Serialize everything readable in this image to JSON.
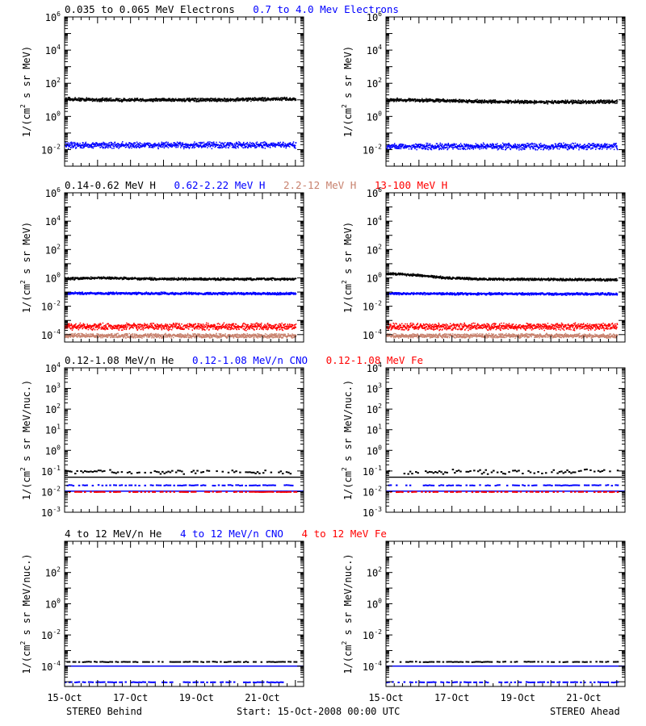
{
  "footer": {
    "left": "STEREO Behind",
    "center": "Start: 15-Oct-2008 00:00 UTC",
    "right": "STEREO Ahead"
  },
  "colors": {
    "black": "#000000",
    "blue": "#0000ff",
    "red": "#ff0000",
    "tan": "#c8826e"
  },
  "chart_data": [
    {
      "type": "scatter",
      "panel": "electrons-behind",
      "yscale": "log",
      "ylim": [
        0.001,
        1000000
      ],
      "yticks": [
        {
          "v": 0.01,
          "b": "10",
          "e": "-2"
        },
        {
          "v": 1,
          "b": "10",
          "e": "0"
        },
        {
          "v": 100,
          "b": "10",
          "e": "2"
        },
        {
          "v": 10000,
          "b": "10",
          "e": "4"
        },
        {
          "v": 1000000,
          "b": "10",
          "e": "6"
        }
      ],
      "ylabel": {
        "pre": "1/(cm",
        "sup": "2",
        "post": " s sr MeV)"
      },
      "legend": [
        {
          "text": "0.035 to 0.065 MeV Electrons",
          "color": "#000000"
        },
        {
          "text": "0.7 to 4.0 Mev Electrons",
          "color": "#0000ff"
        }
      ],
      "xlim": [
        0,
        7.25
      ],
      "series": [
        {
          "name": "0.035 to 0.065 MeV Electrons",
          "color": "#000000",
          "mode": "dense",
          "points": [
            [
              0,
              12
            ],
            [
              1,
              11
            ],
            [
              2,
              10.5
            ],
            [
              3,
              11
            ],
            [
              4,
              10.5
            ],
            [
              5,
              11
            ],
            [
              6,
              12
            ],
            [
              7,
              12
            ]
          ],
          "scatter_decades": 0.12
        },
        {
          "name": "0.7 to 4.0 Mev Electrons",
          "color": "#0000ff",
          "mode": "dense",
          "points": [
            [
              0,
              0.02
            ],
            [
              7,
              0.02
            ]
          ],
          "scatter_decades": 0.22
        }
      ]
    },
    {
      "type": "scatter",
      "panel": "electrons-ahead",
      "yscale": "log",
      "ylim": [
        0.001,
        1000000
      ],
      "yticks": [
        {
          "v": 0.01,
          "b": "10",
          "e": "-2"
        },
        {
          "v": 1,
          "b": "10",
          "e": "0"
        },
        {
          "v": 100,
          "b": "10",
          "e": "2"
        },
        {
          "v": 10000,
          "b": "10",
          "e": "4"
        },
        {
          "v": 1000000,
          "b": "10",
          "e": "6"
        }
      ],
      "ylabel": {
        "pre": "1/(cm",
        "sup": "2",
        "post": " s sr MeV)"
      },
      "legend": [],
      "xlim": [
        0,
        7.25
      ],
      "series": [
        {
          "name": "0.035 to 0.065 MeV Electrons",
          "color": "#000000",
          "mode": "dense",
          "points": [
            [
              0,
              11
            ],
            [
              1.5,
              10
            ],
            [
              3,
              8.5
            ],
            [
              4.5,
              8
            ],
            [
              6,
              8
            ],
            [
              7,
              8.5
            ]
          ],
          "scatter_decades": 0.12
        },
        {
          "name": "0.7 to 4.0 Mev Electrons",
          "color": "#0000ff",
          "mode": "dense",
          "points": [
            [
              0,
              0.017
            ],
            [
              7,
              0.017
            ]
          ],
          "scatter_decades": 0.22
        }
      ]
    },
    {
      "type": "scatter",
      "panel": "protons-behind",
      "yscale": "log",
      "ylim": [
        3e-05,
        1000000
      ],
      "yticks": [
        {
          "v": 0.0001,
          "b": "10",
          "e": "-4"
        },
        {
          "v": 0.01,
          "b": "10",
          "e": "-2"
        },
        {
          "v": 1,
          "b": "10",
          "e": "0"
        },
        {
          "v": 100,
          "b": "10",
          "e": "2"
        },
        {
          "v": 10000,
          "b": "10",
          "e": "4"
        },
        {
          "v": 1000000,
          "b": "10",
          "e": "6"
        }
      ],
      "ylabel": {
        "pre": "1/(cm",
        "sup": "2",
        "post": " s sr MeV)"
      },
      "legend": [
        {
          "text": "0.14-0.62 MeV H",
          "color": "#000000"
        },
        {
          "text": "0.62-2.22 MeV H",
          "color": "#0000ff"
        },
        {
          "text": "2.2-12 MeV H",
          "color": "#c8826e"
        },
        {
          "text": "13-100 MeV H",
          "color": "#ff0000"
        }
      ],
      "xlim": [
        0,
        7.25
      ],
      "series": [
        {
          "name": "0.14-0.62 MeV H",
          "color": "#000000",
          "mode": "dense",
          "points": [
            [
              0,
              0.95
            ],
            [
              1.2,
              1.1
            ],
            [
              2.4,
              0.95
            ],
            [
              4,
              0.9
            ],
            [
              7,
              0.9
            ]
          ],
          "scatter_decades": 0.1
        },
        {
          "name": "0.62-2.22 MeV H",
          "color": "#0000ff",
          "mode": "dense",
          "points": [
            [
              0,
              0.09
            ],
            [
              7,
              0.085
            ]
          ],
          "scatter_decades": 0.1
        },
        {
          "name": "2.2-12 MeV H",
          "color": "#c8826e",
          "mode": "dense",
          "points": [
            [
              0,
              9e-05
            ],
            [
              7,
              9e-05
            ]
          ],
          "scatter_decades": 0.18
        },
        {
          "name": "13-100 MeV H",
          "color": "#ff0000",
          "mode": "dense",
          "points": [
            [
              0,
              0.0004
            ],
            [
              7,
              0.0004
            ]
          ],
          "scatter_decades": 0.28
        }
      ]
    },
    {
      "type": "scatter",
      "panel": "protons-ahead",
      "yscale": "log",
      "ylim": [
        3e-05,
        1000000
      ],
      "yticks": [
        {
          "v": 0.0001,
          "b": "10",
          "e": "-4"
        },
        {
          "v": 0.01,
          "b": "10",
          "e": "-2"
        },
        {
          "v": 1,
          "b": "10",
          "e": "0"
        },
        {
          "v": 100,
          "b": "10",
          "e": "2"
        },
        {
          "v": 10000,
          "b": "10",
          "e": "4"
        },
        {
          "v": 1000000,
          "b": "10",
          "e": "6"
        }
      ],
      "ylabel": {
        "pre": "1/(cm",
        "sup": "2",
        "post": " s sr MeV)"
      },
      "legend": [],
      "xlim": [
        0,
        7.25
      ],
      "series": [
        {
          "name": "0.14-0.62 MeV H",
          "color": "#000000",
          "mode": "dense",
          "points": [
            [
              0,
              2.2
            ],
            [
              0.5,
              2.0
            ],
            [
              1,
              1.6
            ],
            [
              1.8,
              1.1
            ],
            [
              3,
              0.9
            ],
            [
              7,
              0.8
            ]
          ],
          "scatter_decades": 0.1
        },
        {
          "name": "0.62-2.22 MeV H",
          "color": "#0000ff",
          "mode": "dense",
          "points": [
            [
              0,
              0.085
            ],
            [
              7,
              0.08
            ]
          ],
          "scatter_decades": 0.1
        },
        {
          "name": "2.2-12 MeV H",
          "color": "#c8826e",
          "mode": "dense",
          "points": [
            [
              0,
              9e-05
            ],
            [
              7,
              9e-05
            ]
          ],
          "scatter_decades": 0.18
        },
        {
          "name": "13-100 MeV H",
          "color": "#ff0000",
          "mode": "dense",
          "points": [
            [
              0,
              0.0004
            ],
            [
              7,
              0.0004
            ]
          ],
          "scatter_decades": 0.28
        }
      ]
    },
    {
      "type": "scatter",
      "panel": "he-cno-fe-low-behind",
      "yscale": "log",
      "ylim": [
        0.001,
        10000
      ],
      "yticks": [
        {
          "v": 0.001,
          "b": "10",
          "e": "-3"
        },
        {
          "v": 0.01,
          "b": "10",
          "e": "-2"
        },
        {
          "v": 0.1,
          "b": "10",
          "e": "-1"
        },
        {
          "v": 1,
          "b": "10",
          "e": "0"
        },
        {
          "v": 10,
          "b": "10",
          "e": "1"
        },
        {
          "v": 100,
          "b": "10",
          "e": "2"
        },
        {
          "v": 1000,
          "b": "10",
          "e": "3"
        },
        {
          "v": 10000,
          "b": "10",
          "e": "4"
        }
      ],
      "ylabel": {
        "pre": "1/(cm",
        "sup": "2",
        "post": " s sr MeV/nuc.)"
      },
      "legend": [
        {
          "text": "0.12-1.08 MeV/n He",
          "color": "#000000"
        },
        {
          "text": "0.12-1.08 MeV/n CNO",
          "color": "#0000ff"
        },
        {
          "text": "0.12-1.08 MeV Fe",
          "color": "#ff0000"
        }
      ],
      "xlim": [
        0,
        7.25
      ],
      "series": [
        {
          "name": "0.12-1.08 MeV/n He",
          "color": "#000000",
          "mode": "sparse",
          "points": [
            [
              0,
              0.1
            ],
            [
              7,
              0.1
            ]
          ],
          "scatter_decades": 0.12
        },
        {
          "name": "0.12-1.08 MeV/n He",
          "color": "#000000",
          "mode": "line",
          "points": [
            [
              0,
              0.05
            ],
            [
              7.25,
              0.05
            ]
          ]
        },
        {
          "name": "0.12-1.08 MeV/n CNO",
          "color": "#0000ff",
          "mode": "line",
          "points": [
            [
              0,
              0.0105
            ],
            [
              7.25,
              0.0105
            ]
          ]
        },
        {
          "name": "0.12-1.08 MeV/n CNO",
          "color": "#0000ff",
          "mode": "sparse",
          "points": [
            [
              0,
              0.022
            ],
            [
              7,
              0.022
            ]
          ],
          "scatter_decades": 0.02
        },
        {
          "name": "0.12-1.08 MeV Fe",
          "color": "#ff0000",
          "mode": "sparse",
          "points": [
            [
              0,
              0.0105
            ],
            [
              7,
              0.0105
            ]
          ],
          "scatter_decades": 0.01
        }
      ]
    },
    {
      "type": "scatter",
      "panel": "he-cno-fe-low-ahead",
      "yscale": "log",
      "ylim": [
        0.001,
        10000
      ],
      "yticks": [
        {
          "v": 0.001,
          "b": "10",
          "e": "-3"
        },
        {
          "v": 0.01,
          "b": "10",
          "e": "-2"
        },
        {
          "v": 0.1,
          "b": "10",
          "e": "-1"
        },
        {
          "v": 1,
          "b": "10",
          "e": "0"
        },
        {
          "v": 10,
          "b": "10",
          "e": "1"
        },
        {
          "v": 100,
          "b": "10",
          "e": "2"
        },
        {
          "v": 1000,
          "b": "10",
          "e": "3"
        },
        {
          "v": 10000,
          "b": "10",
          "e": "4"
        }
      ],
      "ylabel": {
        "pre": "1/(cm",
        "sup": "2",
        "post": " s sr MeV/nuc.)"
      },
      "legend": [],
      "xlim": [
        0,
        7.25
      ],
      "series": [
        {
          "name": "0.12-1.08 MeV/n He",
          "color": "#000000",
          "mode": "sparse",
          "points": [
            [
              0,
              0.1
            ],
            [
              7,
              0.1
            ]
          ],
          "scatter_decades": 0.12
        },
        {
          "name": "0.12-1.08 MeV/n He",
          "color": "#000000",
          "mode": "line",
          "points": [
            [
              0,
              0.05
            ],
            [
              7.25,
              0.05
            ]
          ]
        },
        {
          "name": "0.12-1.08 MeV/n CNO",
          "color": "#0000ff",
          "mode": "line",
          "points": [
            [
              0,
              0.0105
            ],
            [
              7.25,
              0.0105
            ]
          ]
        },
        {
          "name": "0.12-1.08 MeV/n CNO",
          "color": "#0000ff",
          "mode": "sparse",
          "points": [
            [
              0,
              0.022
            ],
            [
              7,
              0.022
            ]
          ],
          "scatter_decades": 0.02
        },
        {
          "name": "0.12-1.08 MeV Fe",
          "color": "#ff0000",
          "mode": "sparse",
          "points": [
            [
              0,
              0.0105
            ],
            [
              7,
              0.0105
            ]
          ],
          "scatter_decades": 0.01
        }
      ]
    },
    {
      "type": "scatter",
      "panel": "he-cno-fe-high-behind",
      "yscale": "log",
      "ylim": [
        5e-06,
        10000
      ],
      "yticks": [
        {
          "v": 0.0001,
          "b": "10",
          "e": "-4"
        },
        {
          "v": 0.01,
          "b": "10",
          "e": "-2"
        },
        {
          "v": 1,
          "b": "10",
          "e": "0"
        },
        {
          "v": 100,
          "b": "10",
          "e": "2"
        }
      ],
      "ylabel": {
        "pre": "1/(cm",
        "sup": "2",
        "post": " s sr MeV/nuc.)"
      },
      "legend": [
        {
          "text": "4 to 12 MeV/n He",
          "color": "#000000"
        },
        {
          "text": "4 to 12 MeV/n CNO",
          "color": "#0000ff"
        },
        {
          "text": "4 to 12 MeV Fe",
          "color": "#ff0000"
        }
      ],
      "xlim": [
        0,
        7.25
      ],
      "series": [
        {
          "name": "4 to 12 MeV/n He",
          "color": "#000000",
          "mode": "sparse",
          "points": [
            [
              0,
              0.00021
            ],
            [
              7,
              0.00021
            ]
          ],
          "scatter_decades": 0.02
        },
        {
          "name": "4 to 12 MeV/n He",
          "color": "#000000",
          "mode": "line",
          "points": [
            [
              0,
              0.0001
            ],
            [
              7.25,
              0.0001
            ]
          ]
        },
        {
          "name": "4 to 12 MeV/n CNO",
          "color": "#0000ff",
          "mode": "line",
          "points": [
            [
              0,
              0.0001
            ],
            [
              7.25,
              0.0001
            ]
          ]
        },
        {
          "name": "4 to 12 MeV/n CNO",
          "color": "#0000ff",
          "mode": "sparse",
          "points": [
            [
              0,
              1.05e-05
            ],
            [
              7,
              1.05e-05
            ]
          ],
          "scatter_decades": 0.02
        }
      ]
    },
    {
      "type": "scatter",
      "panel": "he-cno-fe-high-ahead",
      "yscale": "log",
      "ylim": [
        5e-06,
        10000
      ],
      "yticks": [
        {
          "v": 0.0001,
          "b": "10",
          "e": "-4"
        },
        {
          "v": 0.01,
          "b": "10",
          "e": "-2"
        },
        {
          "v": 1,
          "b": "10",
          "e": "0"
        },
        {
          "v": 100,
          "b": "10",
          "e": "2"
        }
      ],
      "ylabel": {
        "pre": "1/(cm",
        "sup": "2",
        "post": " s sr MeV/nuc.)"
      },
      "legend": [],
      "xlim": [
        0,
        7.25
      ],
      "series": [
        {
          "name": "4 to 12 MeV/n He",
          "color": "#000000",
          "mode": "sparse",
          "points": [
            [
              0,
              0.00021
            ],
            [
              7,
              0.00021
            ]
          ],
          "scatter_decades": 0.02
        },
        {
          "name": "4 to 12 MeV/n He",
          "color": "#000000",
          "mode": "line",
          "points": [
            [
              0,
              0.0001
            ],
            [
              7.25,
              0.0001
            ]
          ]
        },
        {
          "name": "4 to 12 MeV/n CNO",
          "color": "#0000ff",
          "mode": "line",
          "points": [
            [
              0,
              0.0001
            ],
            [
              7.25,
              0.0001
            ]
          ]
        },
        {
          "name": "4 to 12 MeV/n CNO",
          "color": "#0000ff",
          "mode": "sparse",
          "points": [
            [
              0,
              1.05e-05
            ],
            [
              7,
              1.05e-05
            ]
          ],
          "scatter_decades": 0.02
        }
      ]
    }
  ],
  "xaxis": {
    "ticks": [
      {
        "x": 0,
        "label": "15-Oct"
      },
      {
        "x": 2,
        "label": "17-Oct"
      },
      {
        "x": 4,
        "label": "19-Oct"
      },
      {
        "x": 6,
        "label": "21-Oct"
      }
    ]
  }
}
